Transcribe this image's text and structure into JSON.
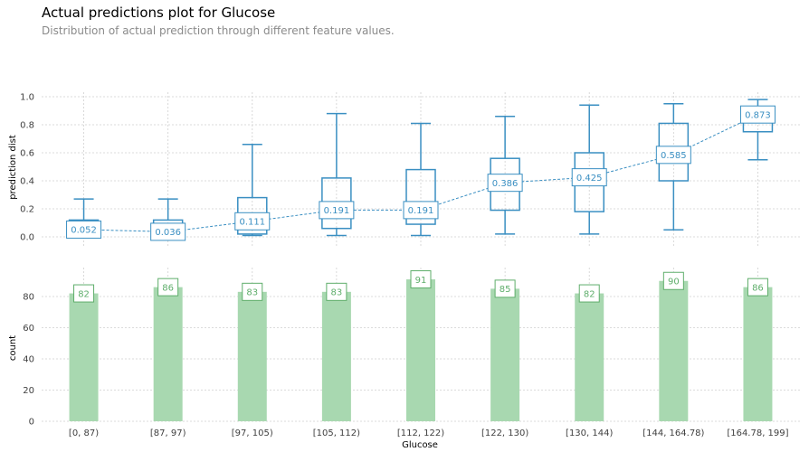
{
  "title": "Actual predictions plot for Glucose",
  "subtitle": "Distribution of actual prediction through different feature values.",
  "colors": {
    "box": "#3a8fc2",
    "mean_label": "#3a8fc2",
    "bar": "#a8d8b0",
    "bar_label": "#5fae6b",
    "grid": "#d0d0d0",
    "tick_text": "#404040"
  },
  "chart_data": [
    {
      "type": "box",
      "ylabel": "prediction dist",
      "ylim": [
        -0.05,
        1.05
      ],
      "yticks": [
        0.0,
        0.2,
        0.4,
        0.6,
        0.8,
        1.0
      ],
      "ytick_labels": [
        "0.0",
        "0.2",
        "0.4",
        "0.6",
        "0.8",
        "1.0"
      ],
      "grid": true,
      "categories": [
        "[0, 87)",
        "[87, 97)",
        "[97, 105)",
        "[105, 112)",
        "[112, 122)",
        "[122, 130)",
        "[130, 144)",
        "[144, 164.78)",
        "[164.78, 199]"
      ],
      "boxes": [
        {
          "whisker_low": 0.0,
          "q1": 0.02,
          "median": 0.05,
          "q3": 0.12,
          "whisker_high": 0.27
        },
        {
          "whisker_low": 0.0,
          "q1": 0.02,
          "median": 0.04,
          "q3": 0.12,
          "whisker_high": 0.27
        },
        {
          "whisker_low": 0.01,
          "q1": 0.02,
          "median": 0.07,
          "q3": 0.28,
          "whisker_high": 0.66
        },
        {
          "whisker_low": 0.01,
          "q1": 0.06,
          "median": 0.14,
          "q3": 0.42,
          "whisker_high": 0.88
        },
        {
          "whisker_low": 0.01,
          "q1": 0.09,
          "median": 0.14,
          "q3": 0.48,
          "whisker_high": 0.81
        },
        {
          "whisker_low": 0.02,
          "q1": 0.19,
          "median": 0.34,
          "q3": 0.56,
          "whisker_high": 0.86
        },
        {
          "whisker_low": 0.02,
          "q1": 0.18,
          "median": 0.38,
          "q3": 0.6,
          "whisker_high": 0.94
        },
        {
          "whisker_low": 0.05,
          "q1": 0.4,
          "median": 0.58,
          "q3": 0.81,
          "whisker_high": 0.95
        },
        {
          "whisker_low": 0.55,
          "q1": 0.75,
          "median": 0.88,
          "q3": 0.92,
          "whisker_high": 0.98
        }
      ],
      "means": [
        0.052,
        0.036,
        0.111,
        0.191,
        0.191,
        0.386,
        0.425,
        0.585,
        0.873
      ],
      "mean_labels": [
        "0.052",
        "0.036",
        "0.111",
        "0.191",
        "0.191",
        "0.386",
        "0.425",
        "0.585",
        "0.873"
      ]
    },
    {
      "type": "bar",
      "ylabel": "count",
      "xlabel": "Glucose",
      "ylim": [
        0,
        96
      ],
      "yticks": [
        0,
        20,
        40,
        60,
        80
      ],
      "ytick_labels": [
        "0",
        "20",
        "40",
        "60",
        "80"
      ],
      "grid": true,
      "categories": [
        "[0, 87)",
        "[87, 97)",
        "[97, 105)",
        "[105, 112)",
        "[112, 122)",
        "[122, 130)",
        "[130, 144)",
        "[144, 164.78)",
        "[164.78, 199]"
      ],
      "values": [
        82,
        86,
        83,
        83,
        91,
        85,
        82,
        90,
        86
      ],
      "value_labels": [
        "82",
        "86",
        "83",
        "83",
        "91",
        "85",
        "82",
        "90",
        "86"
      ]
    }
  ]
}
